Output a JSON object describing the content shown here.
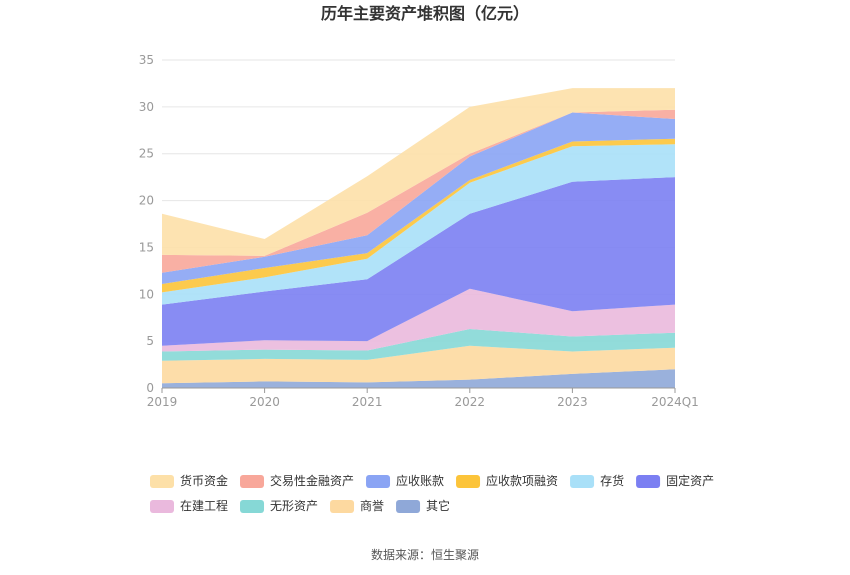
{
  "chart_data": {
    "type": "area",
    "stacked": true,
    "title": "历年主要资产堆积图（亿元）",
    "categories": [
      "2019",
      "2020",
      "2021",
      "2022",
      "2023",
      "2024Q1"
    ],
    "ylim": [
      0,
      35
    ],
    "yticks": [
      0,
      5,
      10,
      15,
      20,
      25,
      30,
      35
    ],
    "grid": true,
    "legend_position": "bottom",
    "series": [
      {
        "name": "其它",
        "color": "#8fa8d8",
        "values": [
          0.5,
          0.7,
          0.6,
          0.9,
          1.5,
          2.0
        ]
      },
      {
        "name": "商誉",
        "color": "#fdd9a0",
        "values": [
          2.4,
          2.4,
          2.4,
          3.6,
          2.4,
          2.3
        ]
      },
      {
        "name": "无形资产",
        "color": "#86d8d6",
        "values": [
          1.0,
          1.0,
          1.0,
          1.8,
          1.6,
          1.6
        ]
      },
      {
        "name": "在建工程",
        "color": "#eab9dd",
        "values": [
          0.6,
          1.0,
          1.0,
          4.3,
          2.7,
          3.0
        ]
      },
      {
        "name": "固定资产",
        "color": "#7b7ff2",
        "values": [
          4.4,
          5.2,
          6.6,
          8.0,
          13.8,
          13.6
        ]
      },
      {
        "name": "存货",
        "color": "#a9e0f8",
        "values": [
          1.3,
          1.5,
          2.2,
          3.3,
          3.8,
          3.5
        ]
      },
      {
        "name": "应收款项融资",
        "color": "#fcc43a",
        "values": [
          0.9,
          1.0,
          0.6,
          0.3,
          0.5,
          0.6
        ]
      },
      {
        "name": "应收账款",
        "color": "#8aa4f4",
        "values": [
          1.2,
          1.2,
          1.9,
          2.5,
          3.1,
          2.1
        ]
      },
      {
        "name": "交易性金融资产",
        "color": "#f8a79a",
        "values": [
          1.9,
          0.1,
          2.4,
          0.3,
          0.0,
          1.0
        ]
      },
      {
        "name": "货币资金",
        "color": "#fde0a8",
        "values": [
          4.4,
          1.8,
          3.9,
          5.0,
          2.6,
          2.3
        ]
      }
    ]
  },
  "legend_rows": [
    [
      {
        "label": "货币资金",
        "color": "#fde0a8"
      },
      {
        "label": "交易性金融资产",
        "color": "#f8a79a"
      },
      {
        "label": "应收账款",
        "color": "#8aa4f4"
      },
      {
        "label": "应收款项融资",
        "color": "#fcc43a"
      },
      {
        "label": "存货",
        "color": "#a9e0f8"
      },
      {
        "label": "固定资产",
        "color": "#7b7ff2"
      }
    ],
    [
      {
        "label": "在建工程",
        "color": "#eab9dd"
      },
      {
        "label": "无形资产",
        "color": "#86d8d6"
      },
      {
        "label": "商誉",
        "color": "#fdd9a0"
      },
      {
        "label": "其它",
        "color": "#8fa8d8"
      }
    ]
  ],
  "source_text": "数据来源：恒生聚源"
}
